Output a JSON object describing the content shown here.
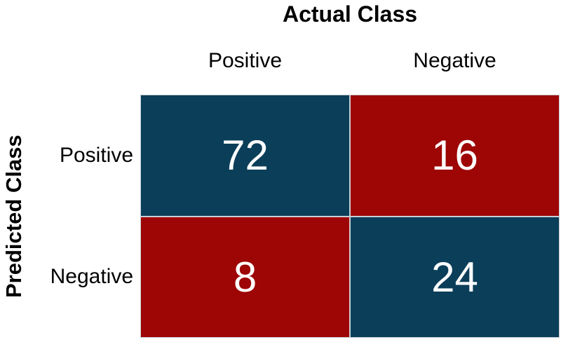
{
  "chart_data": {
    "type": "heatmap",
    "title": "Actual Class",
    "xlabel": "Actual Class",
    "ylabel": "Predicted Class",
    "x_categories": [
      "Positive",
      "Negative"
    ],
    "y_categories": [
      "Positive",
      "Negative"
    ],
    "values": [
      [
        72,
        16
      ],
      [
        8,
        24
      ]
    ],
    "cell_labels": [
      [
        "72",
        "16"
      ],
      [
        "8",
        "24"
      ]
    ],
    "cell_colors": [
      [
        "#0b3e59",
        "#9e0606"
      ],
      [
        "#9e0606",
        "#0b3e59"
      ]
    ],
    "value_text_color": "#ffffff",
    "legend": "none",
    "grid": "off",
    "notes": "2x2 confusion matrix; diagonal cells (true positive 72, true negative 24) dark blue; off-diagonal cells (false negative 16, false positive 8) dark red"
  }
}
